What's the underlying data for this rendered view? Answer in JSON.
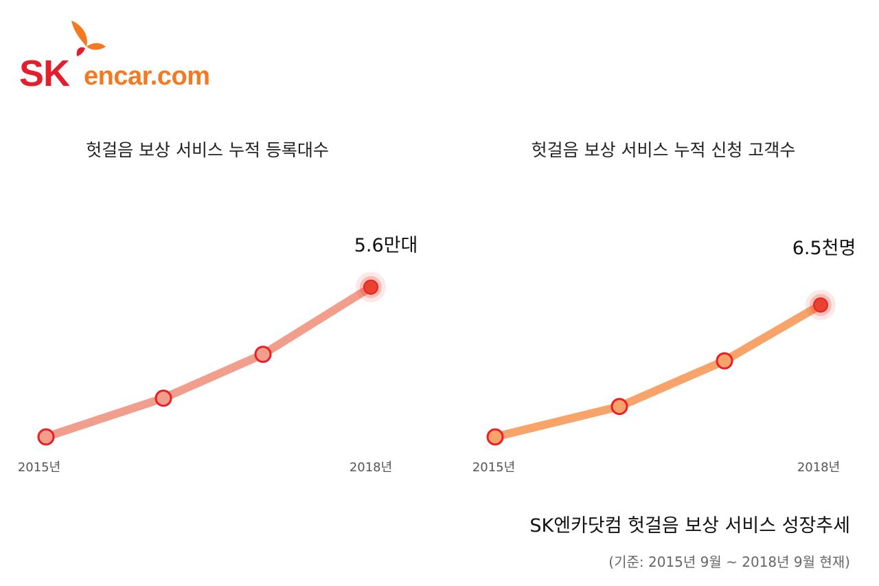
{
  "brand": {
    "sk": "SK",
    "encar": "encar.com",
    "sk_color": "#e2202d",
    "encar_color": "#f47920",
    "wing_colors": [
      "#f47920",
      "#e2202d"
    ]
  },
  "caption": {
    "title": "SK엔카닷컴 헛걸음 보상 서비스 성장추세",
    "note": "(기준: 2015년 9월 ~ 2018년 9월 현재)"
  },
  "colors": {
    "left_line": "#f29e8c",
    "right_line": "#f7a36a",
    "marker_stroke": "#ee1c25",
    "marker_fill_left": "#f29e8c",
    "marker_fill_right": "#f7a36a",
    "highlight": "#e8432e"
  },
  "chart_data": [
    {
      "type": "line",
      "title": "헛걸음 보상 서비스 누적 등록대수",
      "x_tick_labels": [
        "2015년",
        "2018년"
      ],
      "values": [
        1,
        1.75,
        2.6,
        3.9
      ],
      "end_label": "5.6만대",
      "ylim": [
        1,
        3.9
      ],
      "grid": false,
      "legend": "none"
    },
    {
      "type": "line",
      "title": "헛걸음 보상 서비스 누적 신청 고객수",
      "x_tick_labels": [
        "2015년",
        "2018년"
      ],
      "values": [
        1,
        1.6,
        2.5,
        3.6
      ],
      "end_label": "6.5천명",
      "ylim": [
        1,
        3.6
      ],
      "grid": false,
      "legend": "none"
    }
  ]
}
